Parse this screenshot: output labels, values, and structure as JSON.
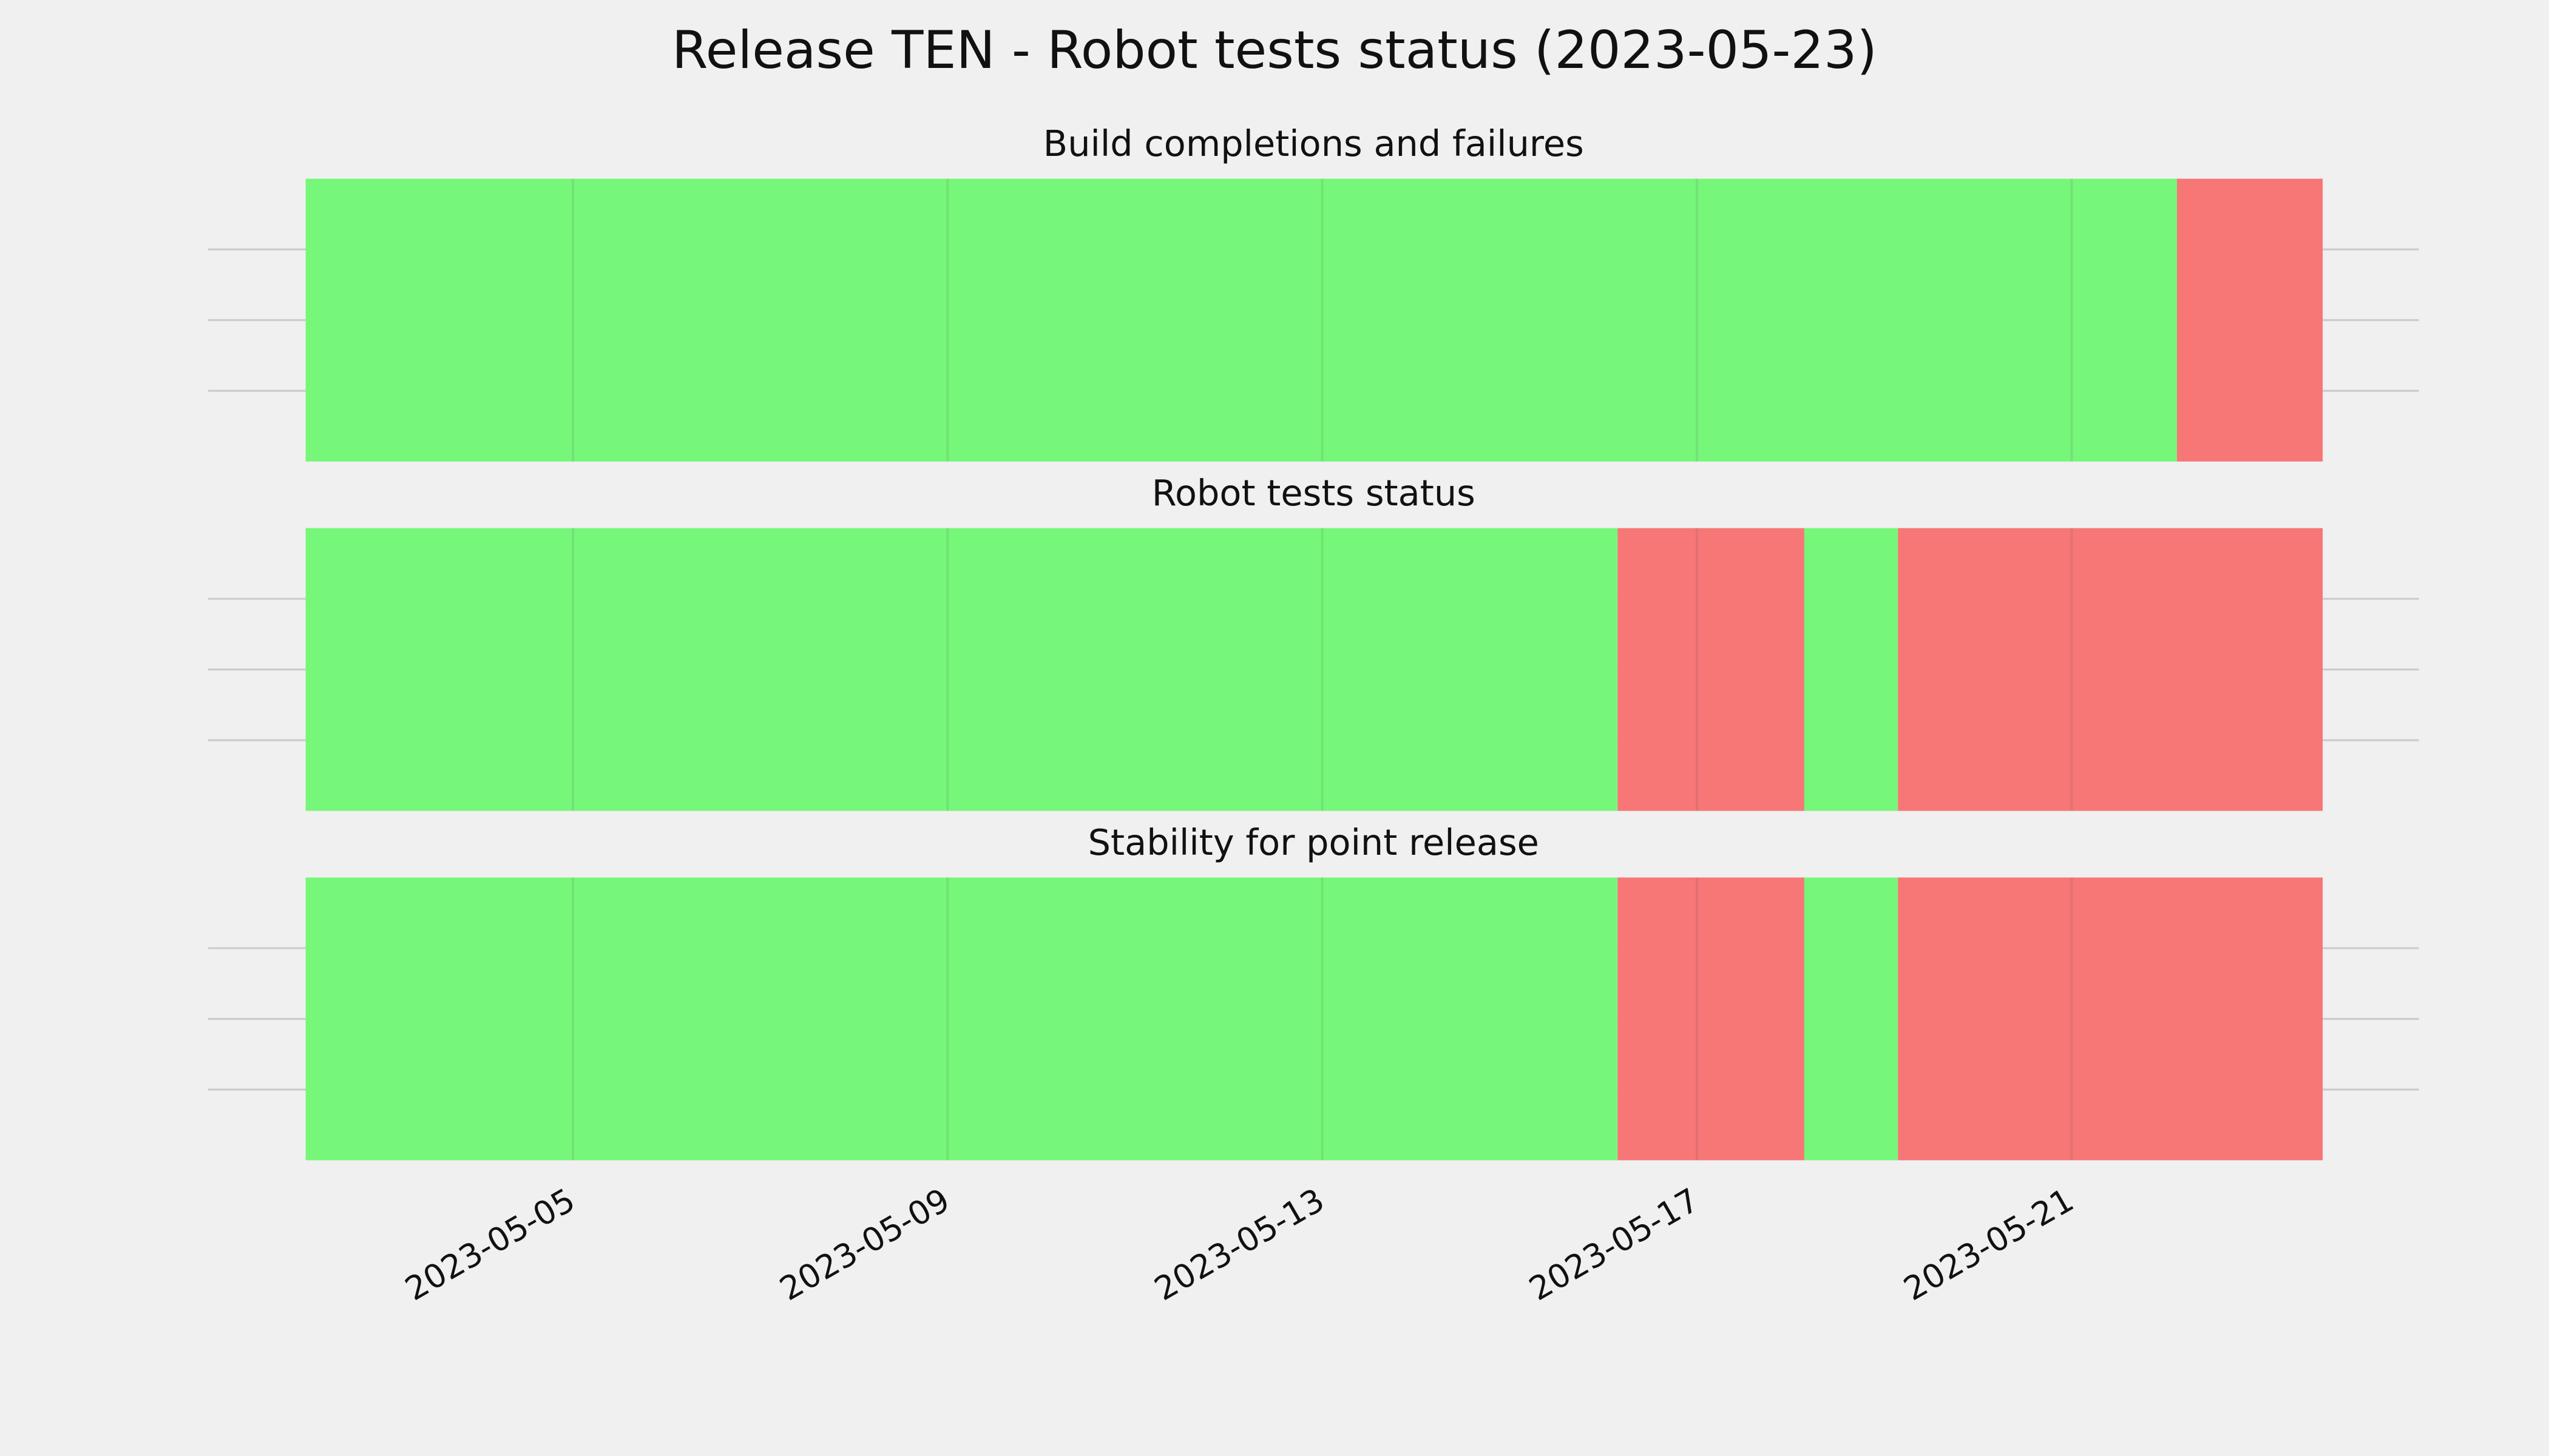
{
  "chart_data": {
    "type": "timeline",
    "title": "Release TEN - Robot tests status (2023-05-23)",
    "xlim": [
      "2023-05-01T02:30",
      "2023-05-24T17:00"
    ],
    "xticks": [
      "2023-05-05",
      "2023-05-09",
      "2023-05-13",
      "2023-05-17",
      "2023-05-21"
    ],
    "grid": true,
    "status_colors": {
      "pass": "#76f779",
      "fail": "#f77676"
    },
    "panels": [
      {
        "title": "Build completions and failures",
        "segments": [
          {
            "start": "2023-05-02T03:30",
            "end": "2023-05-22T03:00",
            "status": "pass"
          },
          {
            "start": "2023-05-22T03:00",
            "end": "2023-05-23T16:20",
            "status": "fail"
          }
        ]
      },
      {
        "title": "Robot tests status",
        "segments": [
          {
            "start": "2023-05-02T03:30",
            "end": "2023-05-16T03:40",
            "status": "pass"
          },
          {
            "start": "2023-05-16T03:40",
            "end": "2023-05-18T03:30",
            "status": "fail"
          },
          {
            "start": "2023-05-18T03:30",
            "end": "2023-05-19T03:30",
            "status": "pass"
          },
          {
            "start": "2023-05-19T03:30",
            "end": "2023-05-23T16:20",
            "status": "fail"
          }
        ]
      },
      {
        "title": "Stability for point release",
        "segments": [
          {
            "start": "2023-05-02T03:30",
            "end": "2023-05-16T03:40",
            "status": "pass"
          },
          {
            "start": "2023-05-16T03:40",
            "end": "2023-05-18T03:30",
            "status": "fail"
          },
          {
            "start": "2023-05-18T03:30",
            "end": "2023-05-19T03:30",
            "status": "pass"
          },
          {
            "start": "2023-05-19T03:30",
            "end": "2023-05-23T16:20",
            "status": "fail"
          }
        ]
      }
    ]
  }
}
